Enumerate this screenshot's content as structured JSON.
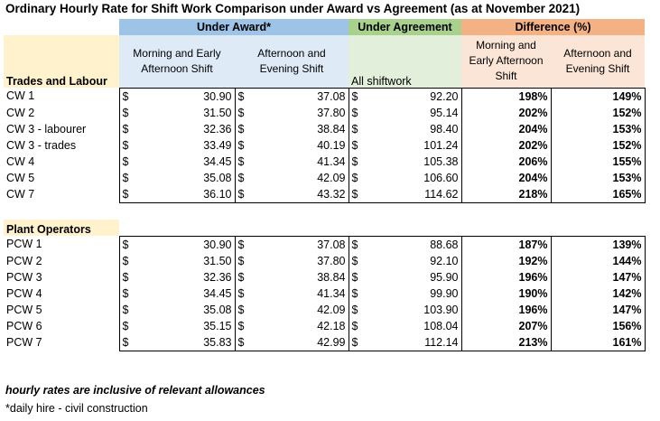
{
  "title": "Ordinary Hourly Rate for Shift Work Comparison under Award vs Agreement  (as at November 2021)",
  "headers": {
    "award": "Under Award*",
    "agreement": "Under Agreement",
    "difference": "Difference (%)",
    "award_morning": "Morning and Early Afternoon Shift",
    "award_afternoon": "Afternoon and Evening Shift",
    "agreement_all": "All shiftwork",
    "diff_morning": "Morning and Early Afternoon Shift",
    "diff_afternoon": "Afternoon and Evening Shift"
  },
  "currency": "$",
  "groups": [
    {
      "name": "Trades and Labour",
      "rows": [
        {
          "label": "CW 1",
          "award_morning": "30.90",
          "award_afternoon": "37.08",
          "agreement": "92.20",
          "diff_morning": "198%",
          "diff_afternoon": "149%"
        },
        {
          "label": "CW 2",
          "award_morning": "31.50",
          "award_afternoon": "37.80",
          "agreement": "95.14",
          "diff_morning": "202%",
          "diff_afternoon": "152%"
        },
        {
          "label": "CW 3 - labourer",
          "award_morning": "32.36",
          "award_afternoon": "38.84",
          "agreement": "98.40",
          "diff_morning": "204%",
          "diff_afternoon": "153%"
        },
        {
          "label": "CW 3 - trades",
          "award_morning": "33.49",
          "award_afternoon": "40.19",
          "agreement": "101.24",
          "diff_morning": "202%",
          "diff_afternoon": "152%"
        },
        {
          "label": "CW 4",
          "award_morning": "34.45",
          "award_afternoon": "41.34",
          "agreement": "105.38",
          "diff_morning": "206%",
          "diff_afternoon": "155%"
        },
        {
          "label": "CW 5",
          "award_morning": "35.08",
          "award_afternoon": "42.09",
          "agreement": "106.60",
          "diff_morning": "204%",
          "diff_afternoon": "153%"
        },
        {
          "label": "CW 7",
          "award_morning": "36.10",
          "award_afternoon": "43.32",
          "agreement": "114.62",
          "diff_morning": "218%",
          "diff_afternoon": "165%"
        }
      ]
    },
    {
      "name": "Plant Operators",
      "rows": [
        {
          "label": "PCW 1",
          "award_morning": "30.90",
          "award_afternoon": "37.08",
          "agreement": "88.68",
          "diff_morning": "187%",
          "diff_afternoon": "139%"
        },
        {
          "label": "PCW 2",
          "award_morning": "31.50",
          "award_afternoon": "37.80",
          "agreement": "92.10",
          "diff_morning": "192%",
          "diff_afternoon": "144%"
        },
        {
          "label": "PCW 3",
          "award_morning": "32.36",
          "award_afternoon": "38.84",
          "agreement": "95.90",
          "diff_morning": "196%",
          "diff_afternoon": "147%"
        },
        {
          "label": "PCW 4",
          "award_morning": "34.45",
          "award_afternoon": "41.34",
          "agreement": "99.90",
          "diff_morning": "190%",
          "diff_afternoon": "142%"
        },
        {
          "label": "PCW 5",
          "award_morning": "35.08",
          "award_afternoon": "42.09",
          "agreement": "103.90",
          "diff_morning": "196%",
          "diff_afternoon": "147%"
        },
        {
          "label": "PCW 6",
          "award_morning": "35.15",
          "award_afternoon": "42.18",
          "agreement": "108.04",
          "diff_morning": "207%",
          "diff_afternoon": "156%"
        },
        {
          "label": "PCW 7",
          "award_morning": "35.83",
          "award_afternoon": "42.99",
          "agreement": "112.14",
          "diff_morning": "213%",
          "diff_afternoon": "161%"
        }
      ]
    }
  ],
  "notes": {
    "inclusive": "hourly rates are inclusive of relevant allowances",
    "footnote": "*daily hire - civil construction"
  }
}
